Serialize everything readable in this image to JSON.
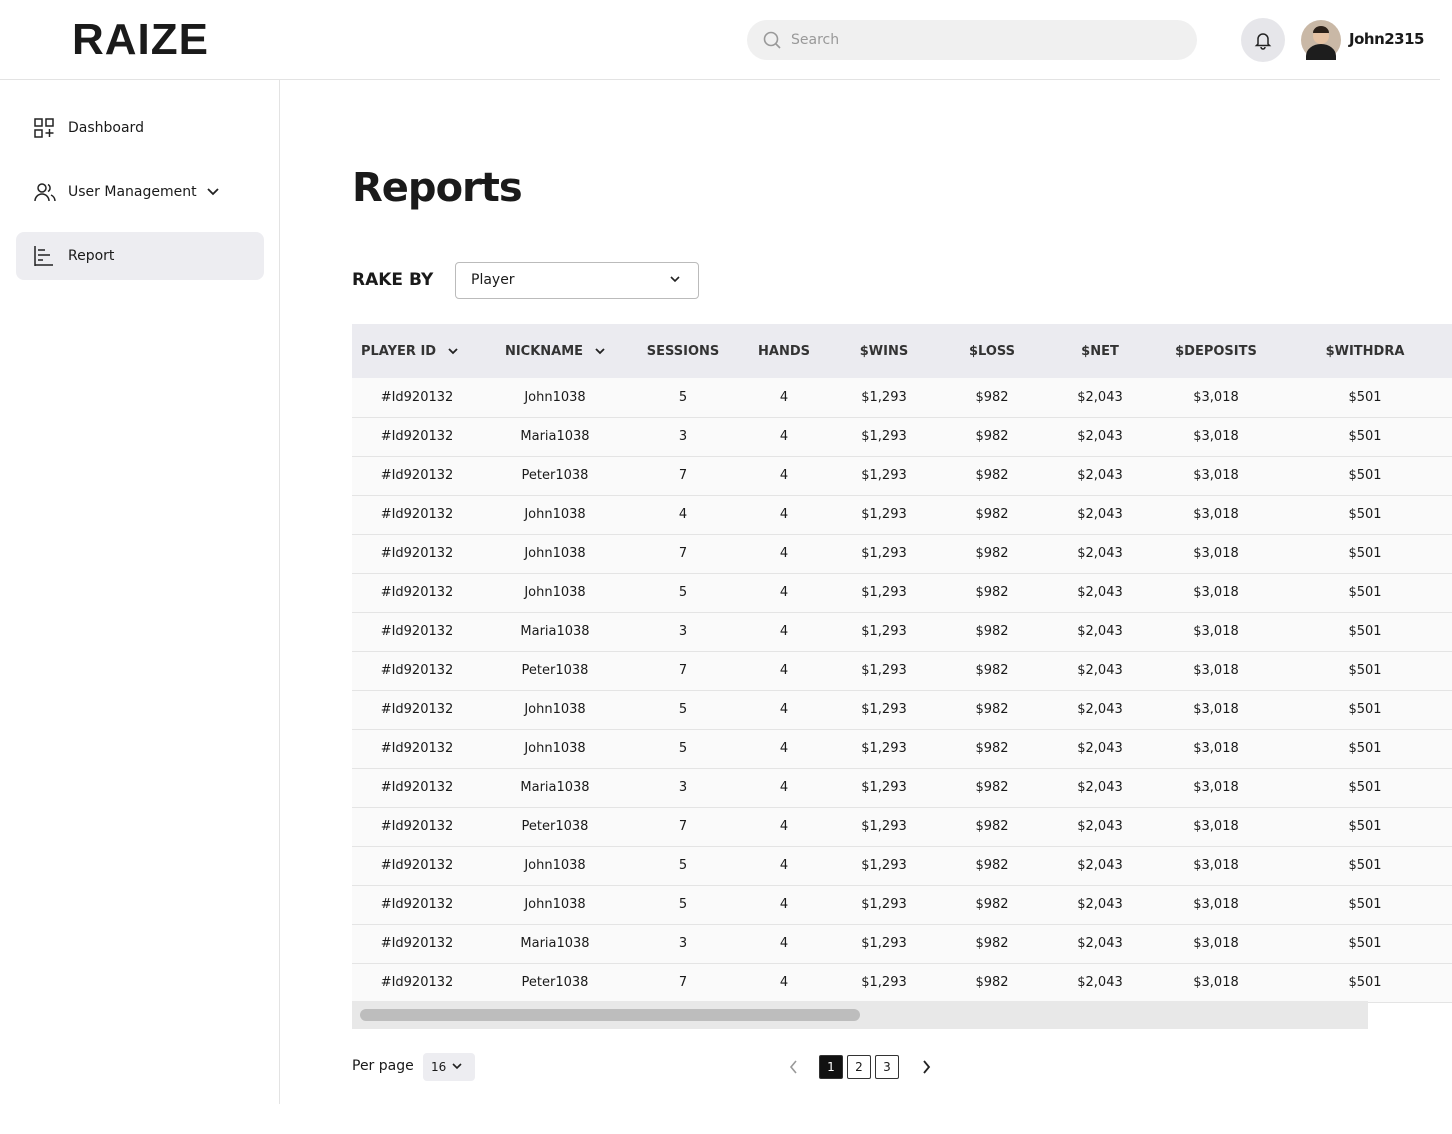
{
  "header": {
    "logo": "RAIZE",
    "search_placeholder": "Search",
    "username": "John2315"
  },
  "sidebar": {
    "items": [
      "Dashboard",
      "User Management",
      "Report"
    ]
  },
  "main": {
    "title": "Reports",
    "rake_by_label": "RAKE BY",
    "rake_by_value": "Player"
  },
  "table": {
    "columns": [
      "PLAYER ID",
      "NICKNAME",
      "SESSIONS",
      "HANDS",
      "$WINS",
      "$LOSS",
      "$NET",
      "$DEPOSITS",
      "$WITHDRA"
    ],
    "rows": [
      [
        "#Id920132",
        "John1038",
        5,
        4,
        "$1,293",
        "$982",
        "$2,043",
        "$3,018",
        "$501"
      ],
      [
        "#Id920132",
        "Maria1038",
        3,
        4,
        "$1,293",
        "$982",
        "$2,043",
        "$3,018",
        "$501"
      ],
      [
        "#Id920132",
        "Peter1038",
        7,
        4,
        "$1,293",
        "$982",
        "$2,043",
        "$3,018",
        "$501"
      ],
      [
        "#Id920132",
        "John1038",
        4,
        4,
        "$1,293",
        "$982",
        "$2,043",
        "$3,018",
        "$501"
      ],
      [
        "#Id920132",
        "John1038",
        7,
        4,
        "$1,293",
        "$982",
        "$2,043",
        "$3,018",
        "$501"
      ],
      [
        "#Id920132",
        "John1038",
        5,
        4,
        "$1,293",
        "$982",
        "$2,043",
        "$3,018",
        "$501"
      ],
      [
        "#Id920132",
        "Maria1038",
        3,
        4,
        "$1,293",
        "$982",
        "$2,043",
        "$3,018",
        "$501"
      ],
      [
        "#Id920132",
        "Peter1038",
        7,
        4,
        "$1,293",
        "$982",
        "$2,043",
        "$3,018",
        "$501"
      ],
      [
        "#Id920132",
        "John1038",
        5,
        4,
        "$1,293",
        "$982",
        "$2,043",
        "$3,018",
        "$501"
      ],
      [
        "#Id920132",
        "John1038",
        5,
        4,
        "$1,293",
        "$982",
        "$2,043",
        "$3,018",
        "$501"
      ],
      [
        "#Id920132",
        "Maria1038",
        3,
        4,
        "$1,293",
        "$982",
        "$2,043",
        "$3,018",
        "$501"
      ],
      [
        "#Id920132",
        "Peter1038",
        7,
        4,
        "$1,293",
        "$982",
        "$2,043",
        "$3,018",
        "$501"
      ],
      [
        "#Id920132",
        "John1038",
        5,
        4,
        "$1,293",
        "$982",
        "$2,043",
        "$3,018",
        "$501"
      ],
      [
        "#Id920132",
        "John1038",
        5,
        4,
        "$1,293",
        "$982",
        "$2,043",
        "$3,018",
        "$501"
      ],
      [
        "#Id920132",
        "Maria1038",
        3,
        4,
        "$1,293",
        "$982",
        "$2,043",
        "$3,018",
        "$501"
      ],
      [
        "#Id920132",
        "Peter1038",
        7,
        4,
        "$1,293",
        "$982",
        "$2,043",
        "$3,018",
        "$501"
      ]
    ]
  },
  "pagination": {
    "per_page_label": "Per page",
    "per_page_value": "16",
    "pages": [
      "1",
      "2",
      "3"
    ]
  }
}
